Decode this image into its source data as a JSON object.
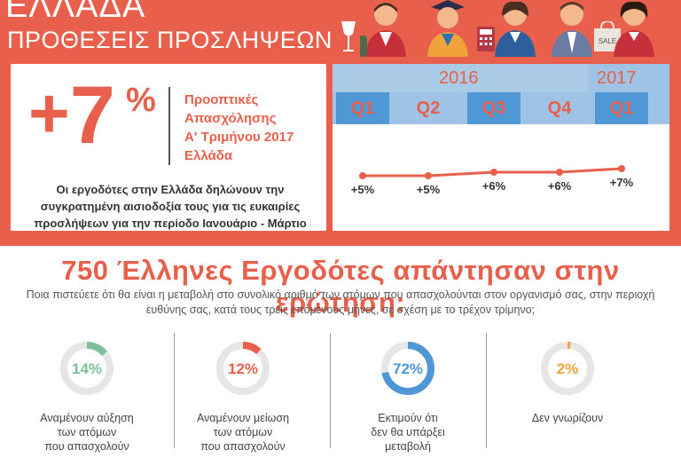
{
  "header": {
    "title": "ΕΛΛΑΔΑ",
    "subtitle": "ΠΡΟΘΕΣΕΙΣ ΠΡΟΣΛΗΨΕΩΝ"
  },
  "highlight": {
    "sign": "+",
    "value": "7",
    "percent": "%",
    "label_lines": [
      "Προοπτικές",
      "Απασχόλησης",
      "Α' Τριμήνου 2017",
      "Ελλάδα"
    ],
    "description": "Οι εργοδότες στην Ελλάδα δηλώνουν την συγκρατημένη αισιοδοξία τους για τις ευκαιρίες προσλήψεων για την περίοδο Ιανουάριο - Μάρτιο"
  },
  "timeline": {
    "year_2016": "2016",
    "year_2017": "2017"
  },
  "survey": {
    "title": "750 Έλληνες Εργοδότες απάντησαν στην ερώτηση:",
    "question": "Ποια πιστεύετε ότι θα είναι η μεταβολή στο συνολικό αριθμό των ατόμων που απασχολούνται στον οργανισμό σας, στην περιοχή ευθύνης σας, κατά τους τρεις επόμενους μήνες, σε σχέση με το τρέχον τρίμηνο;"
  },
  "chart_data": [
    {
      "type": "line",
      "categories": [
        "Q1",
        "Q2",
        "Q3",
        "Q4",
        "Q1"
      ],
      "groups": [
        "2016",
        "2016",
        "2016",
        "2016",
        "2017"
      ],
      "values": [
        5,
        5,
        6,
        6,
        7
      ],
      "data_labels": [
        "+5%",
        "+5%",
        "+6%",
        "+6%",
        "+7%"
      ],
      "color": "#e8604c"
    },
    {
      "type": "pie",
      "style": "donut",
      "items": [
        {
          "value": 14,
          "label": "14%",
          "caption": [
            "Αναμένουν αύξηση",
            "των ατόμων",
            "που απασχολούν"
          ],
          "color": "#7fbf9a"
        },
        {
          "value": 12,
          "label": "12%",
          "caption": [
            "Αναμένουν μείωση",
            "των ατόμων",
            "που απασχολούν"
          ],
          "color": "#e8604c"
        },
        {
          "value": 72,
          "label": "72%",
          "caption": [
            "Εκτιμούν ότι",
            "δεν θα υπάρξει",
            "μεταβολή"
          ],
          "color": "#4f97d5"
        },
        {
          "value": 2,
          "label": "2%",
          "caption": [
            "Δεν γνωρίζουν"
          ],
          "color": "#f0a23b"
        }
      ]
    }
  ]
}
